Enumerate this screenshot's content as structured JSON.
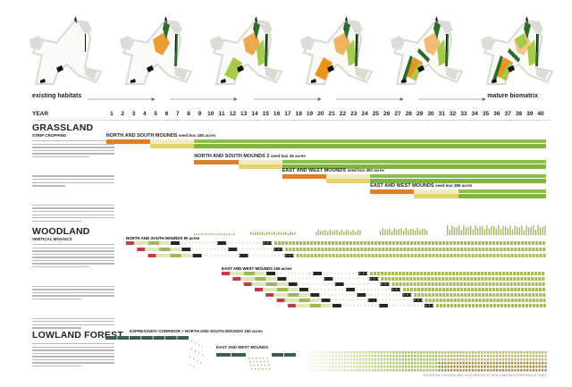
{
  "header": {
    "start_label": "existing habitats",
    "end_label": "mature biomatrix",
    "year_label": "YEAR",
    "years": [
      1,
      2,
      3,
      4,
      5,
      6,
      7,
      8,
      9,
      10,
      11,
      12,
      13,
      14,
      15,
      16,
      17,
      18,
      19,
      20,
      21,
      22,
      23,
      24,
      25,
      26,
      27,
      28,
      29,
      30,
      31,
      32,
      33,
      34,
      35,
      36,
      37,
      38,
      39,
      40
    ]
  },
  "maps": {
    "count": 6,
    "colors": {
      "outline": "#d9d9d4",
      "grassland": "#e8951f",
      "young": "#a8c94a",
      "woodland": "#2f6b2a",
      "dark": "#111111"
    }
  },
  "grassland": {
    "title": "GRASSLAND",
    "subtitle": "STRIP CROPPING",
    "rows": [
      {
        "label": "NORTH AND SOUTH MOUNDS",
        "note": "seed box 180 acres",
        "phases": [
          [
            0,
            4,
            "orange"
          ],
          [
            4,
            8,
            "yellow"
          ],
          [
            8,
            40,
            "green"
          ]
        ]
      },
      {
        "label": "NORTH AND SOUTH MOUNDS 2",
        "note": "seed box 45 acres",
        "phases": [
          [
            8,
            12,
            "orange"
          ],
          [
            12,
            16,
            "yellow"
          ],
          [
            16,
            40,
            "green"
          ]
        ]
      },
      {
        "label": "EAST AND WEST MOUNDS",
        "note": "seed box 400 acres",
        "phases": [
          [
            16,
            20,
            "orange"
          ],
          [
            20,
            24,
            "yellow"
          ],
          [
            24,
            40,
            "green"
          ]
        ]
      },
      {
        "label": "EAST AND WEST MOUNDS",
        "note": "seed box 385 acres",
        "phases": [
          [
            24,
            28,
            "orange"
          ],
          [
            28,
            32,
            "yellow"
          ],
          [
            32,
            40,
            "green"
          ]
        ]
      }
    ]
  },
  "woodland": {
    "title": "WOODLAND",
    "subtitle": "VERTICAL MOSAICS",
    "groups": [
      {
        "label": "NORTH AND SOUTH MOUNDS",
        "note": "90 acres",
        "start": 1.8,
        "rows": 3
      },
      {
        "label": "EAST AND WEST MOUNDS",
        "note": "155 acres",
        "start": 10.5,
        "rows": 7
      }
    ]
  },
  "lowland": {
    "title": "LOWLAND FOREST",
    "groups": [
      {
        "label": "EXPRESSWAY CORRIDOR + NORTH AND SOUTH MOUNDS",
        "note": "160 acres"
      },
      {
        "label": "EAST AND WEST MOUNDS",
        "note": ""
      }
    ]
  },
  "caption": "FIGURE 06: PHASING AND CULTIVATION OF NEW HABITATS (FRESHKILLS PARK)",
  "colors": {
    "orange": "#e07f2a",
    "yellow": "#e6d46a",
    "green": "#8cc04a",
    "red": "#c23b4a",
    "pale": "#dfe6b8",
    "dark": "#1f2a22",
    "forest": "#3d5e4a"
  }
}
